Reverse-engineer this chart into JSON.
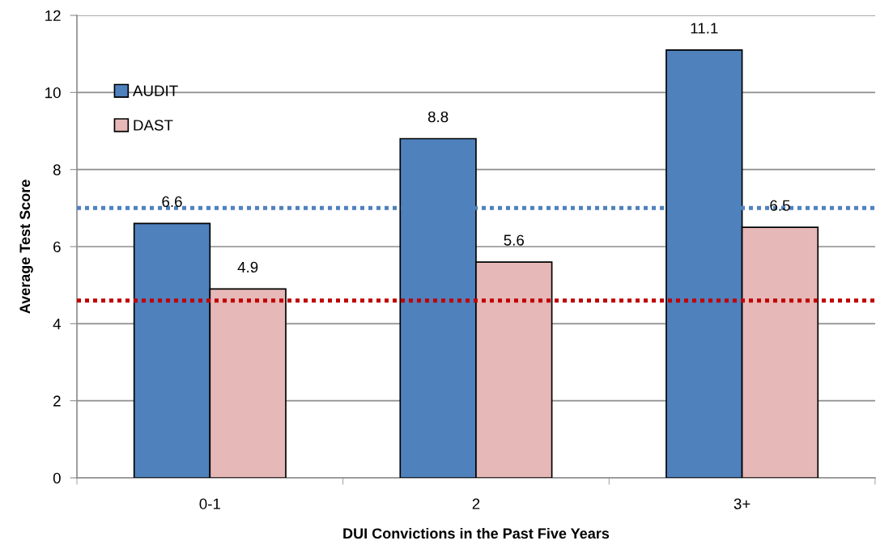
{
  "chart_data": {
    "type": "bar",
    "xlabel": "DUI Convictions in the Past Five Years",
    "ylabel": "Average Test Score",
    "categories": [
      "0-1",
      "2",
      "3+"
    ],
    "series": [
      {
        "name": "AUDIT",
        "color": "#4f81bd",
        "values": [
          6.6,
          8.8,
          11.1
        ]
      },
      {
        "name": "DAST",
        "color": "#e6b8b7",
        "values": [
          4.9,
          5.6,
          6.5
        ]
      }
    ],
    "ylim": [
      0,
      12
    ],
    "yticks": [
      0,
      2,
      4,
      6,
      8,
      10,
      12
    ],
    "grid": "y",
    "legend": "top left",
    "data_labels": true,
    "ref_lines": [
      {
        "axis": "y",
        "value": 7.0,
        "color": "#4f81bd",
        "line_style": "dotted"
      },
      {
        "axis": "y",
        "value": 4.6,
        "color": "#c00000",
        "line_style": "dotted"
      }
    ]
  }
}
